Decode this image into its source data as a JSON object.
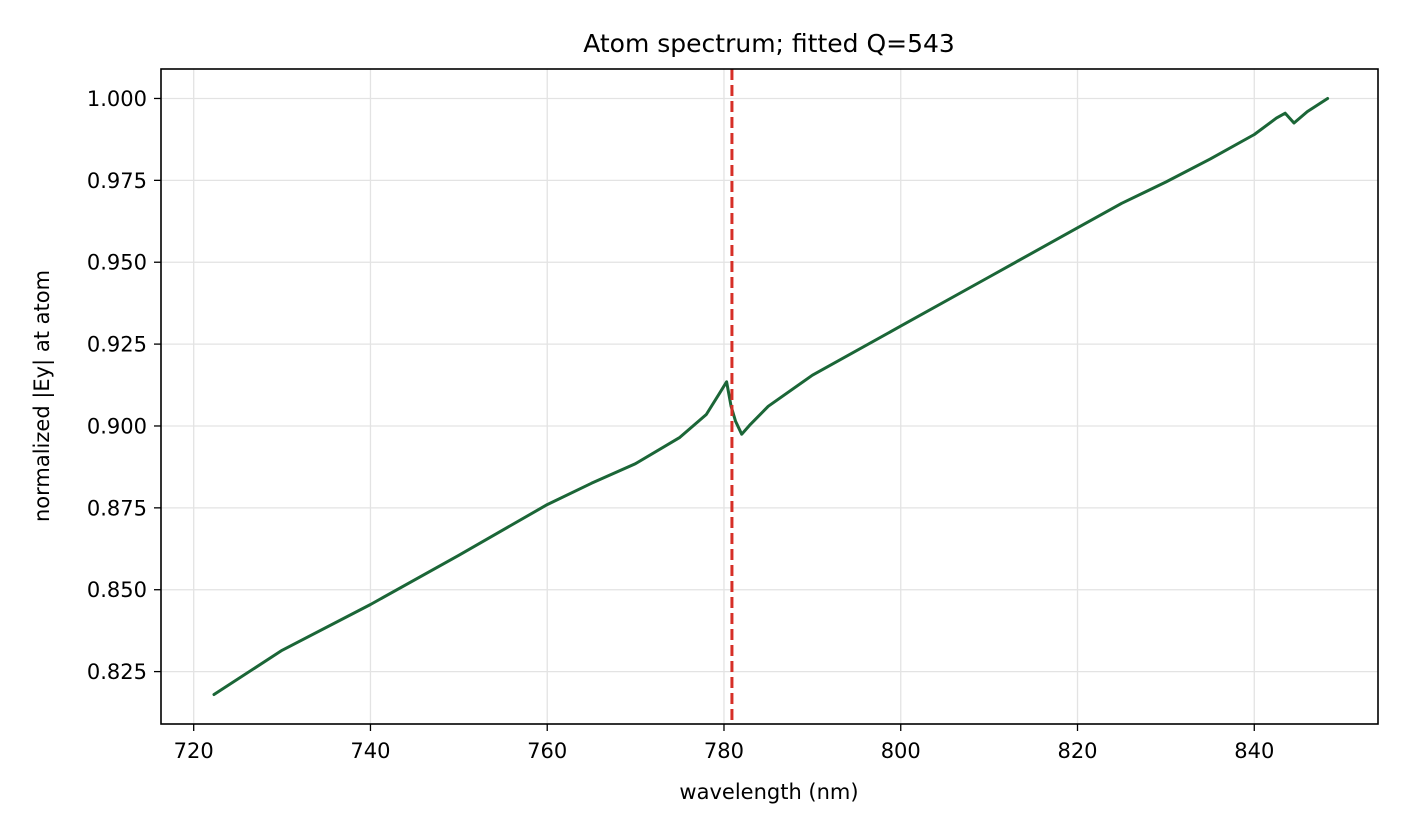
{
  "chart_data": {
    "type": "line",
    "title": "Atom spectrum; fitted Q=543",
    "xlabel": "wavelength (nm)",
    "ylabel": "normalized |Ey| at atom",
    "xlim": [
      716.3,
      854.0
    ],
    "ylim": [
      0.809,
      1.009
    ],
    "x_ticks": [
      720,
      740,
      760,
      780,
      800,
      820,
      840
    ],
    "y_ticks": [
      0.825,
      0.85,
      0.875,
      0.9,
      0.925,
      0.95,
      0.975,
      1.0
    ],
    "x_tick_labels": [
      "720",
      "740",
      "760",
      "780",
      "800",
      "820",
      "840"
    ],
    "y_tick_labels": [
      "0.825",
      "0.850",
      "0.875",
      "0.900",
      "0.925",
      "0.950",
      "0.975",
      "1.000"
    ],
    "grid": true,
    "series": [
      {
        "color": "#1b6637",
        "x": [
          722.3,
          730,
          740,
          750,
          760,
          765,
          770,
          775,
          778,
          779.5,
          780.3,
          780.8,
          781.3,
          782.0,
          783.0,
          785.0,
          790,
          800,
          810,
          820,
          825,
          830,
          835,
          840,
          842.5,
          843.5,
          844.5,
          846,
          848.3
        ],
        "y": [
          0.818,
          0.8315,
          0.8455,
          0.8605,
          0.876,
          0.8825,
          0.8885,
          0.8965,
          0.9035,
          0.91,
          0.9135,
          0.906,
          0.9015,
          0.8975,
          0.9005,
          0.906,
          0.9155,
          0.9305,
          0.9455,
          0.9605,
          0.968,
          0.9745,
          0.9815,
          0.989,
          0.994,
          0.9955,
          0.9925,
          0.996,
          1.0
        ]
      }
    ],
    "vlines": [
      {
        "x": 780.9,
        "color": "#d62f27",
        "style": "dashed"
      }
    ]
  }
}
